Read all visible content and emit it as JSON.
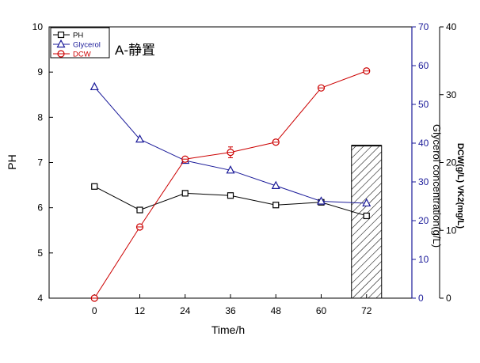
{
  "chart_data": {
    "type": "line",
    "panel_label": "A-静置",
    "x": [
      0,
      12,
      24,
      36,
      48,
      60,
      72
    ],
    "xlabel": "Time/h",
    "xlim": [
      -12,
      84
    ],
    "x_ticks": [
      0,
      12,
      24,
      36,
      48,
      60,
      72
    ],
    "grid": false,
    "legend_position": "top-left",
    "axes": {
      "left": {
        "label": "PH",
        "range": [
          4,
          10
        ],
        "ticks": [
          4,
          5,
          6,
          7,
          8,
          9,
          10
        ],
        "color": "#000000"
      },
      "right1": {
        "label": "Glycerol concentration(g/L)",
        "range": [
          0,
          70
        ],
        "ticks": [
          0,
          10,
          20,
          30,
          40,
          50,
          60,
          70
        ],
        "color": "#1a1a99"
      },
      "right2": {
        "label": "DCW(g/L)  VK2(mg/L)",
        "range": [
          0,
          40
        ],
        "ticks": [
          0,
          10,
          20,
          30,
          40
        ],
        "color": "#000000"
      }
    },
    "series": [
      {
        "name": "PH",
        "axis": "left",
        "marker": "square",
        "color": "#000000",
        "y": [
          6.47,
          5.95,
          6.32,
          6.27,
          6.06,
          6.12,
          5.82
        ]
      },
      {
        "name": "Glycerol",
        "axis": "right1",
        "marker": "triangle",
        "color": "#1a1a99",
        "y": [
          54.5,
          41,
          35.5,
          33,
          29,
          25,
          24.5
        ]
      },
      {
        "name": "DCW",
        "axis": "right2",
        "marker": "circle",
        "color": "#cc0000",
        "y": [
          0,
          10.5,
          20.5,
          21.5,
          23,
          31,
          33.5
        ],
        "yerr": [
          0,
          0,
          0,
          0.8,
          0,
          0,
          0
        ]
      }
    ],
    "bar": {
      "name": "VK2",
      "axis": "right2",
      "x": 72,
      "value": 22.5,
      "pattern": "hatched"
    }
  }
}
